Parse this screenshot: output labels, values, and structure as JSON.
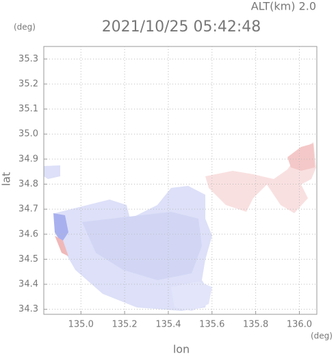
{
  "chart_data": {
    "type": "map",
    "title": "2021/10/25 05:42:48",
    "altitude_label": "ALT(km) 2.0",
    "y_unit": "(deg)",
    "x_unit": "(deg)",
    "xlabel": "lon",
    "ylabel": "lat",
    "xlim": [
      134.83,
      136.08
    ],
    "ylim": [
      34.28,
      35.35
    ],
    "xticks": [
      {
        "value": 135,
        "label": "135.0"
      },
      135.2,
      135.4,
      135.6,
      135.8,
      {
        "value": 136,
        "label": "136.0"
      }
    ],
    "yticks": [
      34.3,
      34.4,
      34.5,
      34.6,
      34.7,
      34.8,
      34.9,
      {
        "value": 35,
        "label": "35.0"
      },
      35.1,
      35.2,
      35.3
    ],
    "grid": true
  }
}
